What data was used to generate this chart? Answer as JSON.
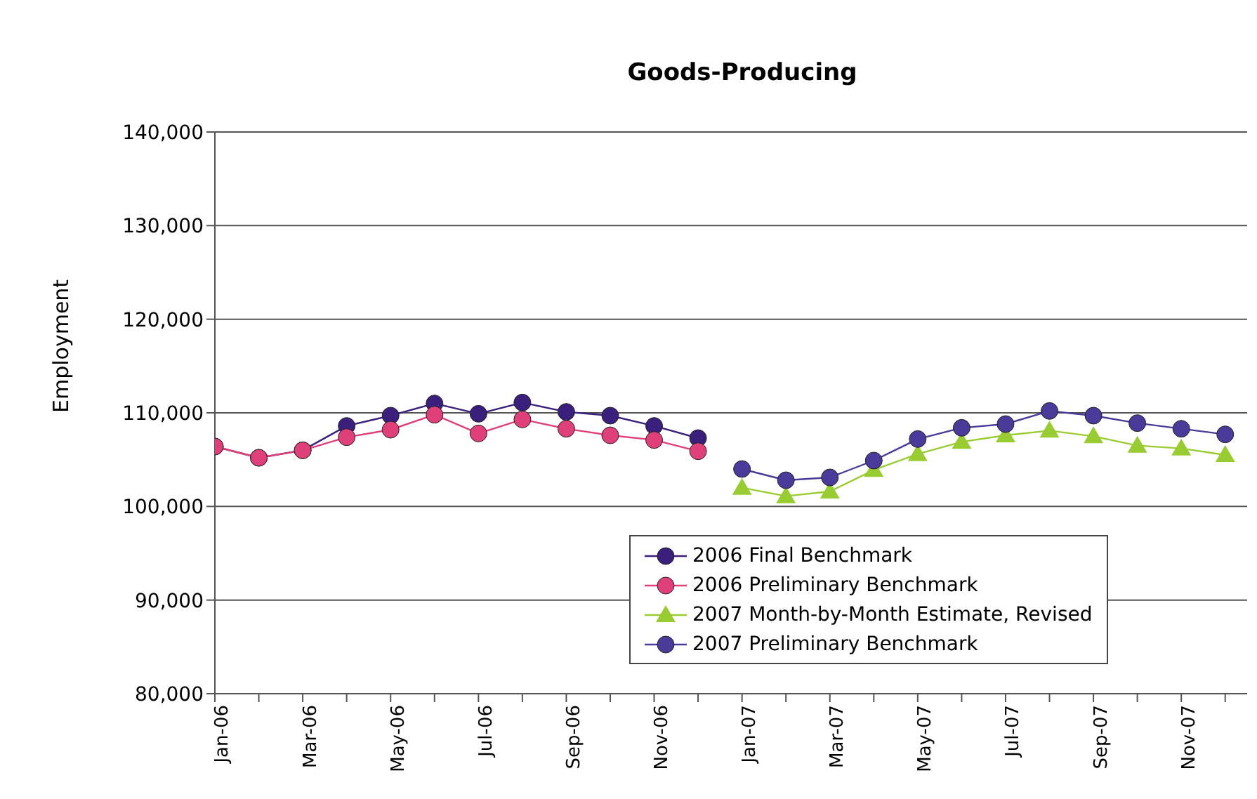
{
  "chart_data": {
    "type": "line",
    "title": "Goods-Producing",
    "ylabel": "Employment",
    "categories": [
      "Jan-06",
      null,
      "Mar-06",
      null,
      "May-06",
      null,
      "Jul-06",
      null,
      "Sep-06",
      null,
      "Nov-06",
      null,
      "Jan-07",
      null,
      "Mar-07",
      null,
      "May-07",
      null,
      "Jul-07",
      null,
      "Sep-07",
      null,
      "Nov-07",
      null
    ],
    "series": [
      {
        "name": "2006 Final Benchmark",
        "color": "#3a1f7d",
        "marker": "circle",
        "values": [
          106400,
          105200,
          106000,
          108600,
          109700,
          111000,
          109900,
          111100,
          110100,
          109700,
          108600,
          107300,
          null,
          null,
          null,
          null,
          null,
          null,
          null,
          null,
          null,
          null,
          null,
          null
        ]
      },
      {
        "name": "2006 Preliminary Benchmark",
        "color": "#e0407a",
        "marker": "circle",
        "values": [
          106400,
          105200,
          106000,
          107400,
          108200,
          109800,
          107800,
          109300,
          108300,
          107600,
          107100,
          105900,
          null,
          null,
          null,
          null,
          null,
          null,
          null,
          null,
          null,
          null,
          null,
          null
        ]
      },
      {
        "name": "2007 Month-by-Month Estimate, Revised",
        "color": "#99cc33",
        "marker": "triangle",
        "values": [
          null,
          null,
          null,
          null,
          null,
          null,
          null,
          null,
          null,
          null,
          null,
          null,
          102000,
          101100,
          101600,
          103900,
          105600,
          106900,
          107600,
          108100,
          107500,
          106500,
          106200,
          105500
        ]
      },
      {
        "name": "2007 Preliminary Benchmark",
        "color": "#4a3a9a",
        "marker": "circle",
        "values": [
          null,
          null,
          null,
          null,
          null,
          null,
          null,
          null,
          null,
          null,
          null,
          null,
          104000,
          102800,
          103100,
          104900,
          107200,
          108400,
          108800,
          110200,
          109700,
          108900,
          108300,
          107700
        ]
      }
    ],
    "ylim": [
      80000,
      140000
    ],
    "yticks": [
      {
        "value": 80000,
        "label": "80,000"
      },
      {
        "value": 90000,
        "label": "90,000"
      },
      {
        "value": 100000,
        "label": "100,000"
      },
      {
        "value": 110000,
        "label": "110,000"
      },
      {
        "value": 120000,
        "label": "120,000"
      },
      {
        "value": 130000,
        "label": "130,000"
      },
      {
        "value": 140000,
        "label": "140,000"
      }
    ],
    "grid": "y",
    "legend": "bottom right"
  }
}
